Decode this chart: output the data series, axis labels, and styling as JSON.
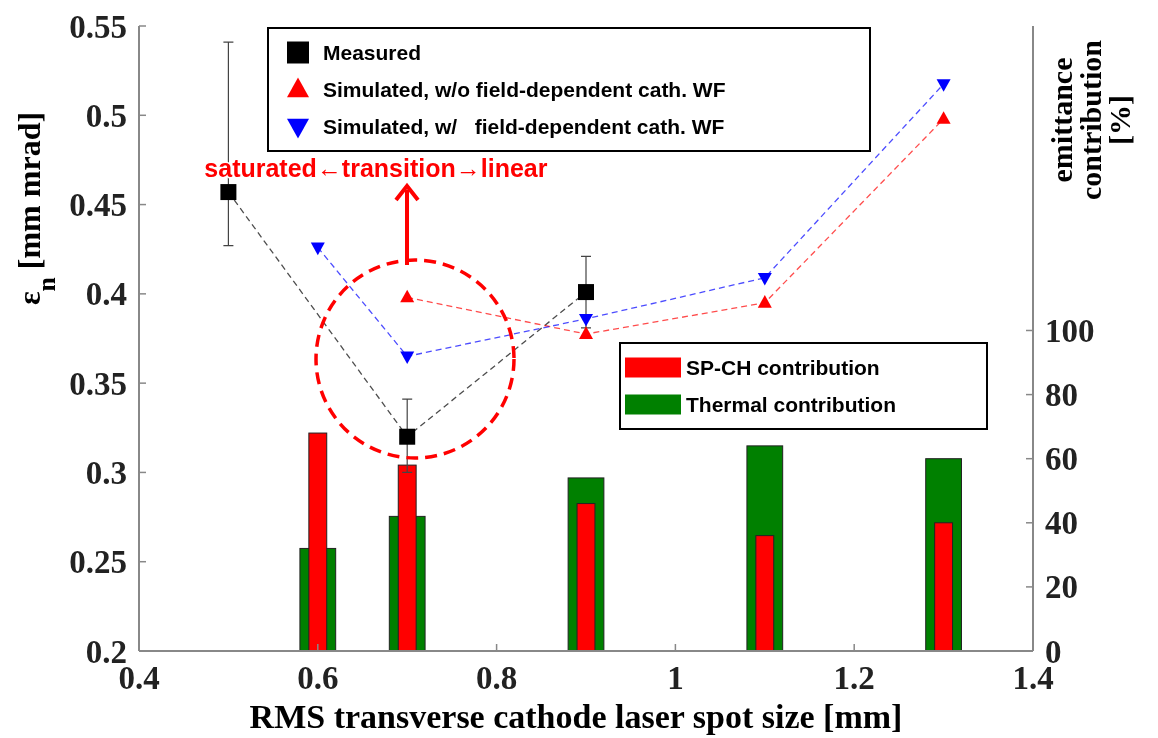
{
  "chart_data": {
    "type": "line",
    "xlabel": "RMS transverse cathode laser spot size [mm]",
    "ylabel": "ε$_{n}$ [mm mrad]",
    "y2label": "emittance contribution [%]",
    "xlim": [
      0.4,
      1.4
    ],
    "xticks": [
      0.4,
      0.6,
      0.8,
      1,
      1.2,
      1.4
    ],
    "ylim": [
      0.2,
      0.55
    ],
    "yticks": [
      0.2,
      0.25,
      0.3,
      0.35,
      0.4,
      0.45,
      0.5,
      0.55
    ],
    "y2lim": [
      0,
      195
    ],
    "y2ticks": [
      0,
      20,
      40,
      60,
      80,
      100
    ],
    "grid": false,
    "legend": "top",
    "line_style": "dashed",
    "annotations": [
      "saturated←transition→linear"
    ],
    "series": [
      {
        "name": "Thermal contribution",
        "type": "bar",
        "axis": "y2",
        "x": [
          0.6,
          0.7,
          0.9,
          1.1,
          1.3
        ],
        "values": [
          32,
          42,
          54,
          64,
          60
        ],
        "color": "#008000"
      },
      {
        "name": "SP-CH contribution",
        "type": "bar",
        "axis": "y2",
        "x": [
          0.6,
          0.7,
          0.9,
          1.1,
          1.3
        ],
        "values": [
          68,
          58,
          46,
          36,
          40
        ],
        "color": "#ff0000"
      },
      {
        "name": "Measured",
        "x": [
          0.5,
          0.7,
          0.9
        ],
        "values": [
          0.457,
          0.32,
          0.401
        ],
        "color": "#000000",
        "marker": "square",
        "errors": [
          [
            0.427,
            0.541
          ],
          [
            0.3,
            0.341
          ],
          [
            0.381,
            0.421
          ]
        ]
      },
      {
        "name": "Simulated, w/o field-dependent cath. WF",
        "x": [
          0.7,
          0.9,
          1.1,
          1.3
        ],
        "values": [
          0.398,
          0.3775,
          0.395,
          0.498
        ],
        "color": "#ff0000",
        "marker": "triangle"
      },
      {
        "name": "Simulated, w/   field-dependent cath. WF",
        "x": [
          0.6,
          0.7,
          0.9,
          1.1,
          1.3
        ],
        "values": [
          0.426,
          0.365,
          0.386,
          0.409,
          0.5175
        ],
        "color": "#0000ff",
        "marker": "triangle-down"
      }
    ]
  }
}
